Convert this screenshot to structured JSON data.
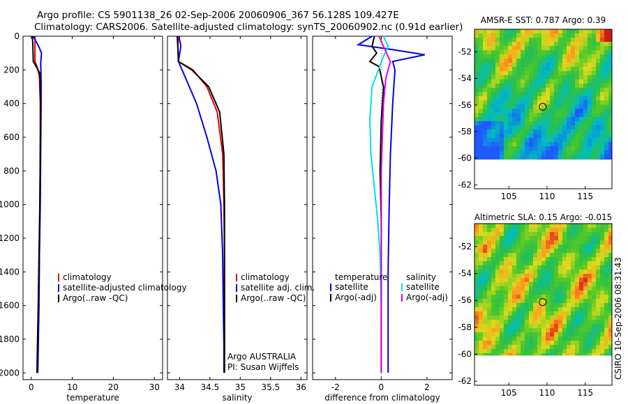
{
  "header": {
    "title_line1": "Argo profile: CS 5901138_26 02-Sep-2006 20060906_367 56.128S 109.427E",
    "title_line2": "Climatology: CARS2006. Satellite-adjusted climatology: synTS_20060902.nc (0.91d earlier)",
    "footer": "CSIRO 10-Sep-2006 08:31:43"
  },
  "colors": {
    "climatology": "#e00000",
    "satellite": "#0000e0",
    "argo": "#000000",
    "sal_satellite": "#00e0e0",
    "sal_argo": "#e000e0"
  },
  "chart_data": [
    {
      "type": "line",
      "id": "temp",
      "xlabel": "temperature",
      "ylabel": "",
      "xlim": [
        -2,
        32
      ],
      "ylim": [
        2040,
        0
      ],
      "xticks": [
        0,
        10,
        20,
        30
      ],
      "yticks": [
        0,
        200,
        400,
        600,
        800,
        1000,
        1200,
        1400,
        1600,
        1800,
        2000
      ],
      "legend": [
        "climatology",
        "satellite-adjusted climatology",
        "Argo(..raw -QC)"
      ],
      "series": [
        {
          "name": "climatology",
          "color": "climatology",
          "x": [
            0.9,
            0.9,
            0.9,
            1.4,
            2.0,
            2.2,
            2.2,
            2.1,
            2.0,
            1.8,
            1.6,
            1.5
          ],
          "y": [
            0,
            50,
            150,
            180,
            240,
            400,
            700,
            1000,
            1300,
            1600,
            1850,
            2000
          ]
        },
        {
          "name": "satellite-adjusted climatology",
          "color": "satellite",
          "x": [
            0.5,
            1.8,
            2.5,
            2.3,
            2.4,
            2.4,
            2.3,
            2.2,
            2.0,
            1.9,
            1.7,
            1.6
          ],
          "y": [
            0,
            60,
            100,
            160,
            250,
            400,
            700,
            1000,
            1300,
            1600,
            1850,
            2000
          ]
        },
        {
          "name": "Argo(..raw -QC)",
          "color": "argo",
          "x": [
            0.3,
            0.4,
            0.5,
            1.0,
            2.1,
            2.3,
            2.2,
            2.1,
            1.9,
            1.7,
            1.5,
            1.4
          ],
          "y": [
            0,
            60,
            150,
            170,
            220,
            400,
            700,
            1000,
            1300,
            1600,
            1850,
            2000
          ]
        }
      ]
    },
    {
      "type": "line",
      "id": "sal",
      "xlabel": "salinity",
      "ylabel": "",
      "xlim": [
        33.8,
        36.1
      ],
      "ylim": [
        2040,
        0
      ],
      "xticks": [
        34,
        34.5,
        35,
        35.5,
        36
      ],
      "legend": [
        "climatology",
        "satellite adj. clim.",
        "Argo(..raw -QC)"
      ],
      "note_lines": [
        "Argo AUSTRALIA",
        "PI: Susan Wijffels"
      ],
      "series": [
        {
          "name": "climatology",
          "color": "climatology",
          "x": [
            33.98,
            33.97,
            33.98,
            34.22,
            34.45,
            34.62,
            34.71,
            34.73,
            34.74,
            34.74,
            34.74,
            34.74
          ],
          "y": [
            0,
            60,
            150,
            200,
            300,
            450,
            700,
            1000,
            1300,
            1600,
            1850,
            2000
          ]
        },
        {
          "name": "satellite adj. clim.",
          "color": "satellite",
          "x": [
            33.99,
            34.02,
            33.98,
            34.1,
            34.28,
            34.45,
            34.6,
            34.68,
            34.71,
            34.72,
            34.73,
            34.73
          ],
          "y": [
            0,
            60,
            150,
            250,
            400,
            600,
            800,
            1000,
            1300,
            1600,
            1850,
            2000
          ]
        },
        {
          "name": "Argo(..raw -QC)",
          "color": "argo",
          "x": [
            33.96,
            33.97,
            33.98,
            34.2,
            34.48,
            34.66,
            34.73,
            34.74,
            34.74,
            34.74,
            34.74,
            34.74
          ],
          "y": [
            0,
            60,
            150,
            200,
            300,
            450,
            700,
            1000,
            1300,
            1600,
            1850,
            2000
          ]
        }
      ]
    },
    {
      "type": "line",
      "id": "diff",
      "xlabel": "difference from climatology",
      "ylabel": "",
      "xlim": [
        -3,
        3.1
      ],
      "ylim": [
        2040,
        0
      ],
      "xticks": [
        -2,
        0,
        2
      ],
      "legend_left_title": "temperature",
      "legend_right_title": "salinity",
      "legend_left": [
        "satellite",
        "Argo(-adj)"
      ],
      "legend_right": [
        "satellite",
        "Argo(-adj)"
      ],
      "series": [
        {
          "name": "temperature satellite",
          "color": "satellite",
          "x": [
            -0.4,
            -1.0,
            0.5,
            1.9,
            0.5,
            0.6,
            0.5,
            0.4,
            0.35,
            0.3,
            0.3,
            0.3
          ],
          "y": [
            0,
            50,
            80,
            110,
            150,
            200,
            400,
            700,
            1000,
            1400,
            1800,
            2000
          ]
        },
        {
          "name": "temperature Argo(-adj)",
          "color": "argo",
          "x": [
            -0.3,
            -0.4,
            -0.2,
            -0.5,
            -0.1,
            0.1,
            0.0,
            -0.05,
            0.0,
            0.0,
            0.0,
            0.0
          ],
          "y": [
            0,
            60,
            100,
            150,
            180,
            300,
            500,
            800,
            1100,
            1400,
            1800,
            2000
          ]
        },
        {
          "name": "salinity satellite",
          "color": "sal_satellite",
          "x": [
            0.1,
            0.3,
            0.1,
            -0.4,
            -0.5,
            -0.45,
            -0.3,
            -0.15,
            -0.05,
            0.0,
            0.0,
            0.0
          ],
          "y": [
            0,
            60,
            120,
            300,
            500,
            700,
            900,
            1100,
            1300,
            1600,
            1850,
            2000
          ]
        },
        {
          "name": "salinity Argo(-adj)",
          "color": "sal_argo",
          "x": [
            -0.1,
            0.1,
            0.4,
            0.2,
            0.1,
            0.05,
            0.0,
            0.0,
            0.0,
            0.0,
            0.0,
            0.0
          ],
          "y": [
            0,
            60,
            150,
            250,
            400,
            600,
            800,
            1000,
            1300,
            1600,
            1850,
            2000
          ]
        }
      ]
    },
    {
      "type": "heatmap",
      "id": "sst",
      "title": "AMSR-E SST: 0.787 Argo: 0.39",
      "xlim": [
        100.5,
        118.5
      ],
      "ylim": [
        -62.3,
        -50.3
      ],
      "xticks": [
        105,
        110,
        115
      ],
      "yticks": [
        -52,
        -54,
        -56,
        -58,
        -60,
        -62
      ],
      "marker_lon": 109.43,
      "marker_lat": -56.13,
      "data_lat_min": -60.1
    },
    {
      "type": "heatmap",
      "id": "sla",
      "title": "Altimetric SLA: 0.15 Argo: -0.015",
      "xlim": [
        100.5,
        118.5
      ],
      "ylim": [
        -62.3,
        -50.3
      ],
      "xticks": [
        105,
        110,
        115
      ],
      "yticks": [
        -52,
        -54,
        -56,
        -58,
        -60,
        -62
      ],
      "marker_lon": 109.43,
      "marker_lat": -56.13,
      "data_lat_min": -60.1
    }
  ]
}
